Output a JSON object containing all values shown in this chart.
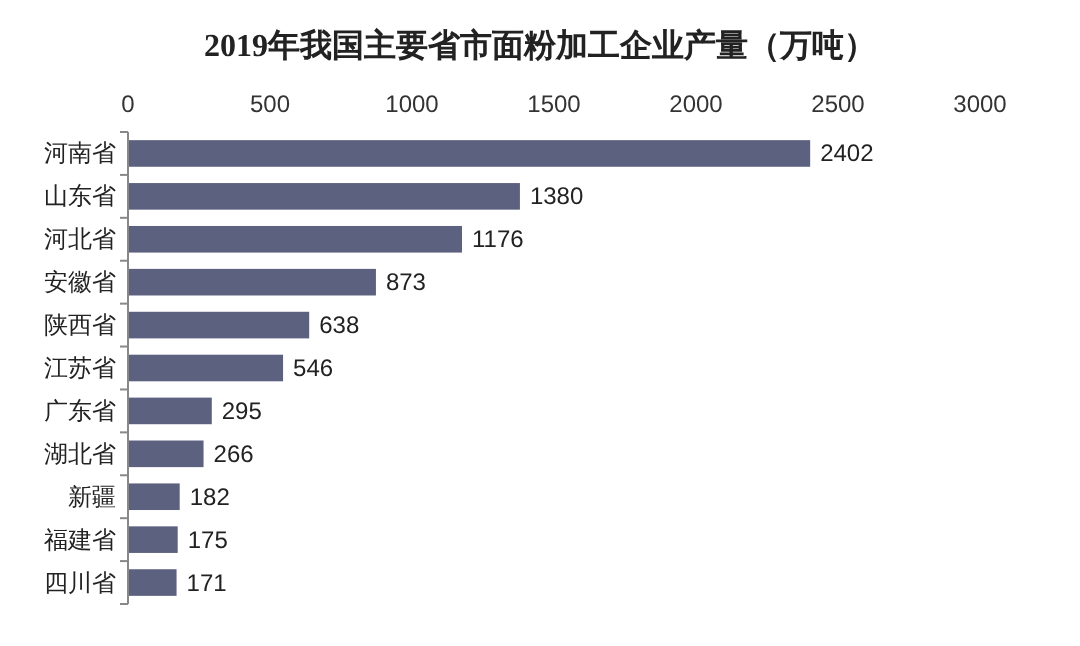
{
  "chart_data": {
    "type": "bar",
    "orientation": "horizontal",
    "title": "2019年我国主要省市面粉加工企业产量（万吨）",
    "categories": [
      "河南省",
      "山东省",
      "河北省",
      "安徽省",
      "陕西省",
      "江苏省",
      "广东省",
      "湖北省",
      "新疆",
      "福建省",
      "四川省"
    ],
    "values": [
      2402,
      1380,
      1176,
      873,
      638,
      546,
      295,
      266,
      182,
      175,
      171
    ],
    "color": "#5d6180",
    "xlim": [
      0,
      3000
    ],
    "xticks": [
      0,
      500,
      1000,
      1500,
      2000,
      2500,
      3000
    ],
    "data_labels": true
  }
}
